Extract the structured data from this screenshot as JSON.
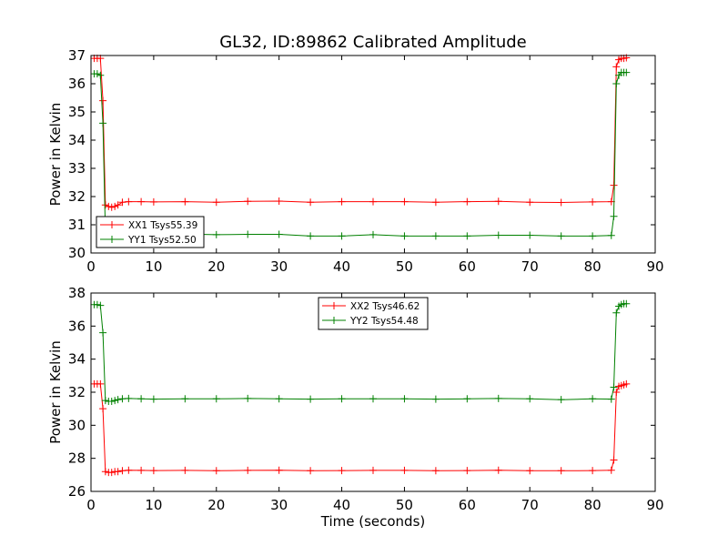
{
  "figure": {
    "title": "GL32, ID:89862 Calibrated Amplitude"
  },
  "chart_data": [
    {
      "type": "line",
      "title": "GL32, ID:89862 Calibrated Amplitude",
      "xlabel": "",
      "ylabel": "Power in Kelvin",
      "xlim": [
        0,
        90
      ],
      "ylim": [
        30,
        37
      ],
      "xticks": [
        "0",
        "10",
        "20",
        "30",
        "40",
        "50",
        "60",
        "70",
        "80",
        "90"
      ],
      "yticks": [
        "30",
        "31",
        "32",
        "33",
        "34",
        "35",
        "36",
        "37"
      ],
      "grid": false,
      "legend_position": "lower-left",
      "marker": "+",
      "series": [
        {
          "name": "XX1 Tsys55.39",
          "color": "#ff0000",
          "x": [
            0.5,
            1.0,
            1.5,
            1.9,
            2.3,
            2.8,
            3.3,
            3.8,
            4.3,
            5.0,
            6.0,
            8.0,
            10.0,
            15.0,
            20.0,
            25.0,
            30.0,
            35.0,
            40.0,
            45.0,
            50.0,
            55.0,
            60.0,
            65.0,
            70.0,
            75.0,
            80.0,
            83.0,
            83.4,
            83.8,
            84.2,
            84.6,
            85.0,
            85.4
          ],
          "y": [
            36.9,
            36.9,
            36.9,
            35.4,
            31.7,
            31.65,
            31.62,
            31.65,
            31.7,
            31.8,
            31.82,
            31.82,
            31.81,
            31.82,
            31.8,
            31.83,
            31.84,
            31.8,
            31.82,
            31.82,
            31.82,
            31.8,
            31.82,
            31.83,
            31.8,
            31.79,
            31.81,
            31.82,
            32.4,
            36.6,
            36.85,
            36.9,
            36.9,
            36.92
          ]
        },
        {
          "name": "YY1 Tsys52.50",
          "color": "#008000",
          "x": [
            0.5,
            1.0,
            1.5,
            1.9,
            2.3,
            2.8,
            3.3,
            3.8,
            4.3,
            5.0,
            6.0,
            8.0,
            10.0,
            15.0,
            20.0,
            25.0,
            30.0,
            35.0,
            40.0,
            45.0,
            50.0,
            55.0,
            60.0,
            65.0,
            70.0,
            75.0,
            80.0,
            83.0,
            83.4,
            83.8,
            84.2,
            84.6,
            85.0,
            85.4
          ],
          "y": [
            36.35,
            36.35,
            36.3,
            34.6,
            30.75,
            30.72,
            30.7,
            30.72,
            30.7,
            30.68,
            30.68,
            30.67,
            30.66,
            30.67,
            30.65,
            30.66,
            30.66,
            30.6,
            30.6,
            30.65,
            30.6,
            30.6,
            30.6,
            30.63,
            30.63,
            30.6,
            30.6,
            30.62,
            31.3,
            36.0,
            36.3,
            36.4,
            36.4,
            36.4
          ]
        }
      ]
    },
    {
      "type": "line",
      "title": "",
      "xlabel": "Time (seconds)",
      "ylabel": "Power in Kelvin",
      "xlim": [
        0,
        90
      ],
      "ylim": [
        26,
        38
      ],
      "xticks": [
        "0",
        "10",
        "20",
        "30",
        "40",
        "50",
        "60",
        "70",
        "80",
        "90"
      ],
      "yticks": [
        "26",
        "28",
        "30",
        "32",
        "34",
        "36",
        "38"
      ],
      "grid": false,
      "legend_position": "top-center",
      "marker": "+",
      "series": [
        {
          "name": "XX2 Tsys46.62",
          "color": "#ff0000",
          "x": [
            0.5,
            1.0,
            1.5,
            1.9,
            2.3,
            2.8,
            3.3,
            3.8,
            4.3,
            5.0,
            6.0,
            8.0,
            10.0,
            15.0,
            20.0,
            25.0,
            30.0,
            35.0,
            40.0,
            45.0,
            50.0,
            55.0,
            60.0,
            65.0,
            70.0,
            75.0,
            80.0,
            83.0,
            83.4,
            83.8,
            84.2,
            84.6,
            85.0,
            85.4
          ],
          "y": [
            32.5,
            32.5,
            32.5,
            31.0,
            27.2,
            27.15,
            27.15,
            27.2,
            27.2,
            27.25,
            27.28,
            27.27,
            27.26,
            27.27,
            27.25,
            27.27,
            27.28,
            27.25,
            27.26,
            27.27,
            27.27,
            27.25,
            27.26,
            27.28,
            27.25,
            27.25,
            27.26,
            27.28,
            27.9,
            32.0,
            32.35,
            32.4,
            32.45,
            32.5
          ]
        },
        {
          "name": "YY2 Tsys54.48",
          "color": "#008000",
          "x": [
            0.5,
            1.0,
            1.5,
            1.9,
            2.3,
            2.8,
            3.3,
            3.8,
            4.3,
            5.0,
            6.0,
            8.0,
            10.0,
            15.0,
            20.0,
            25.0,
            30.0,
            35.0,
            40.0,
            45.0,
            50.0,
            55.0,
            60.0,
            65.0,
            70.0,
            75.0,
            80.0,
            83.0,
            83.4,
            83.8,
            84.2,
            84.6,
            85.0,
            85.4
          ],
          "y": [
            37.3,
            37.3,
            37.25,
            35.6,
            31.5,
            31.45,
            31.45,
            31.5,
            31.55,
            31.6,
            31.62,
            31.6,
            31.58,
            31.6,
            31.6,
            31.62,
            31.6,
            31.58,
            31.6,
            31.6,
            31.6,
            31.58,
            31.6,
            31.62,
            31.6,
            31.55,
            31.6,
            31.58,
            32.3,
            36.8,
            37.2,
            37.3,
            37.35,
            37.35
          ]
        }
      ]
    }
  ]
}
